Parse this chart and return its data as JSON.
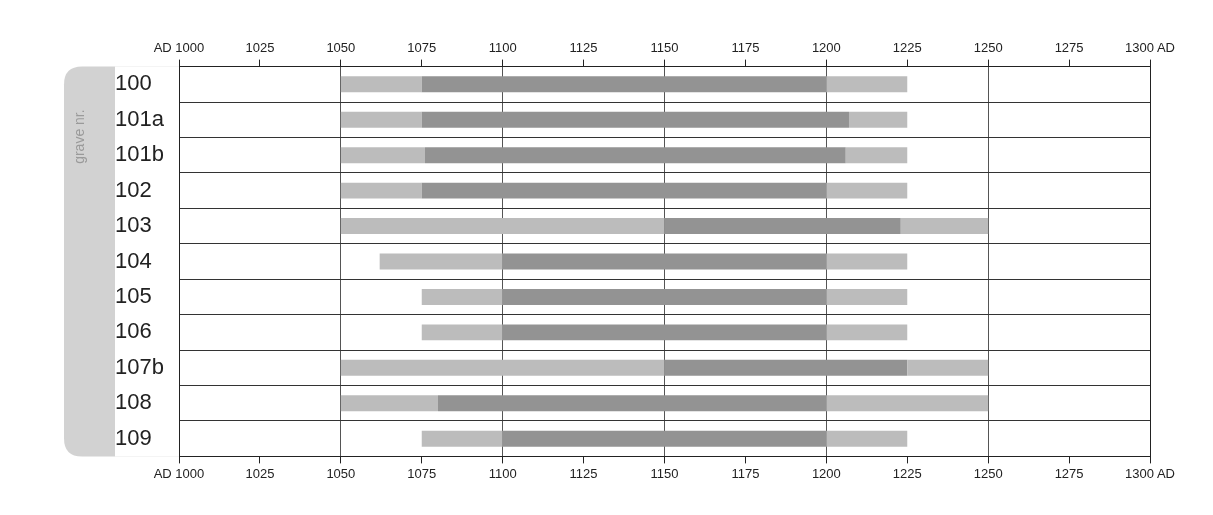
{
  "chart_data": {
    "type": "bar",
    "orientation": "horizontal",
    "ylabel": "grave nr.",
    "grid": true,
    "legend": false,
    "categories": [
      "100",
      "101a",
      "101b",
      "102",
      "103",
      "104",
      "105",
      "106",
      "107b",
      "108",
      "109"
    ],
    "xlim": [
      1000,
      1300
    ],
    "xticks": [
      {
        "value": 1000,
        "label": "AD 1000"
      },
      1025,
      1050,
      1075,
      1100,
      1125,
      1150,
      1175,
      1200,
      1225,
      1250,
      1275,
      {
        "value": 1300,
        "label": "1300 AD"
      }
    ],
    "x2lim": [
      1000,
      1300
    ],
    "x2ticks": [
      {
        "value": 1000,
        "label": "AD 1000"
      },
      1025,
      1050,
      1075,
      1100,
      1125,
      1150,
      1175,
      1200,
      1225,
      1250,
      1275,
      {
        "value": 1300,
        "label": "1300 AD"
      }
    ],
    "series": [
      {
        "type": "bar",
        "color": "#bcbcbc",
        "base": [
          1050,
          1050,
          1050,
          1050,
          1050,
          1062,
          1075,
          1075,
          1050,
          1050,
          1075
        ],
        "values": [
          25,
          25,
          26,
          25,
          100,
          38,
          25,
          25,
          100,
          30,
          25
        ]
      },
      {
        "type": "bar",
        "color": "#939393",
        "base": [
          1075,
          1075,
          1076,
          1075,
          1150,
          1100,
          1100,
          1100,
          1150,
          1080,
          1100
        ],
        "values": [
          125,
          132,
          130,
          125,
          73,
          100,
          100,
          100,
          75,
          120,
          100
        ]
      },
      {
        "type": "bar",
        "color": "#bcbcbc",
        "base": [
          1200,
          1207,
          1206,
          1200,
          1223,
          1200,
          1200,
          1200,
          1225,
          1200,
          1200
        ],
        "values": [
          25,
          18,
          19,
          25,
          27,
          25,
          25,
          25,
          25,
          50,
          25
        ]
      }
    ]
  }
}
